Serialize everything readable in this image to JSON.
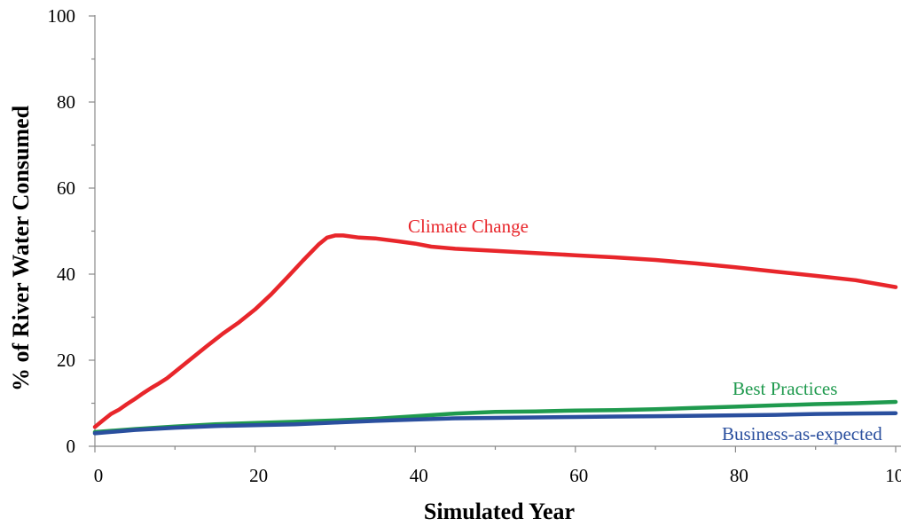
{
  "chart_data": {
    "type": "line",
    "title": "",
    "xlabel": "Simulated Year",
    "ylabel": "% of River Water Consumed",
    "xlim": [
      0,
      100
    ],
    "ylim": [
      0,
      100
    ],
    "x_ticks": [
      "0",
      "20",
      "40",
      "60",
      "80",
      "100"
    ],
    "y_ticks": [
      "0",
      "20",
      "40",
      "60",
      "80",
      "100"
    ],
    "grid": false,
    "legend": "inline labels",
    "series": [
      {
        "name": "Climate Change",
        "color": "#e8262b",
        "x": [
          0,
          1,
          2,
          3,
          4,
          5,
          6,
          7,
          8,
          9,
          10,
          12,
          14,
          16,
          18,
          20,
          22,
          24,
          26,
          28,
          29,
          30,
          31,
          33,
          35,
          38,
          40,
          42,
          45,
          50,
          55,
          60,
          65,
          70,
          75,
          80,
          85,
          90,
          95,
          100
        ],
        "values": [
          4.5,
          6,
          7.5,
          8.5,
          9.8,
          11,
          12.3,
          13.5,
          14.6,
          15.8,
          17.3,
          20.3,
          23.3,
          26.2,
          28.8,
          31.8,
          35.3,
          39.2,
          43.2,
          47.0,
          48.5,
          49.0,
          49.0,
          48.5,
          48.3,
          47.6,
          47.1,
          46.4,
          45.9,
          45.4,
          44.9,
          44.4,
          43.9,
          43.3,
          42.5,
          41.6,
          40.6,
          39.6,
          38.6,
          37.0
        ]
      },
      {
        "name": "Best Practices",
        "color": "#1f9a4e",
        "x": [
          0,
          5,
          10,
          15,
          20,
          25,
          30,
          35,
          40,
          45,
          50,
          55,
          60,
          65,
          70,
          75,
          80,
          85,
          90,
          95,
          100
        ],
        "values": [
          3.3,
          4.0,
          4.6,
          5.1,
          5.4,
          5.7,
          6.0,
          6.4,
          7.0,
          7.6,
          8.0,
          8.1,
          8.3,
          8.4,
          8.6,
          8.9,
          9.2,
          9.5,
          9.8,
          10.0,
          10.3
        ]
      },
      {
        "name": "Business-as-expected",
        "color": "#2a4f9e",
        "x": [
          0,
          5,
          10,
          15,
          20,
          25,
          30,
          35,
          40,
          45,
          50,
          55,
          60,
          65,
          70,
          75,
          80,
          85,
          90,
          95,
          100
        ],
        "values": [
          3.0,
          3.8,
          4.3,
          4.7,
          4.9,
          5.1,
          5.5,
          5.9,
          6.2,
          6.5,
          6.6,
          6.7,
          6.8,
          6.9,
          7.0,
          7.1,
          7.2,
          7.3,
          7.5,
          7.6,
          7.7
        ]
      }
    ],
    "annotations": [
      "Climate Change",
      "Best Practices",
      "Business-as-expected"
    ]
  }
}
